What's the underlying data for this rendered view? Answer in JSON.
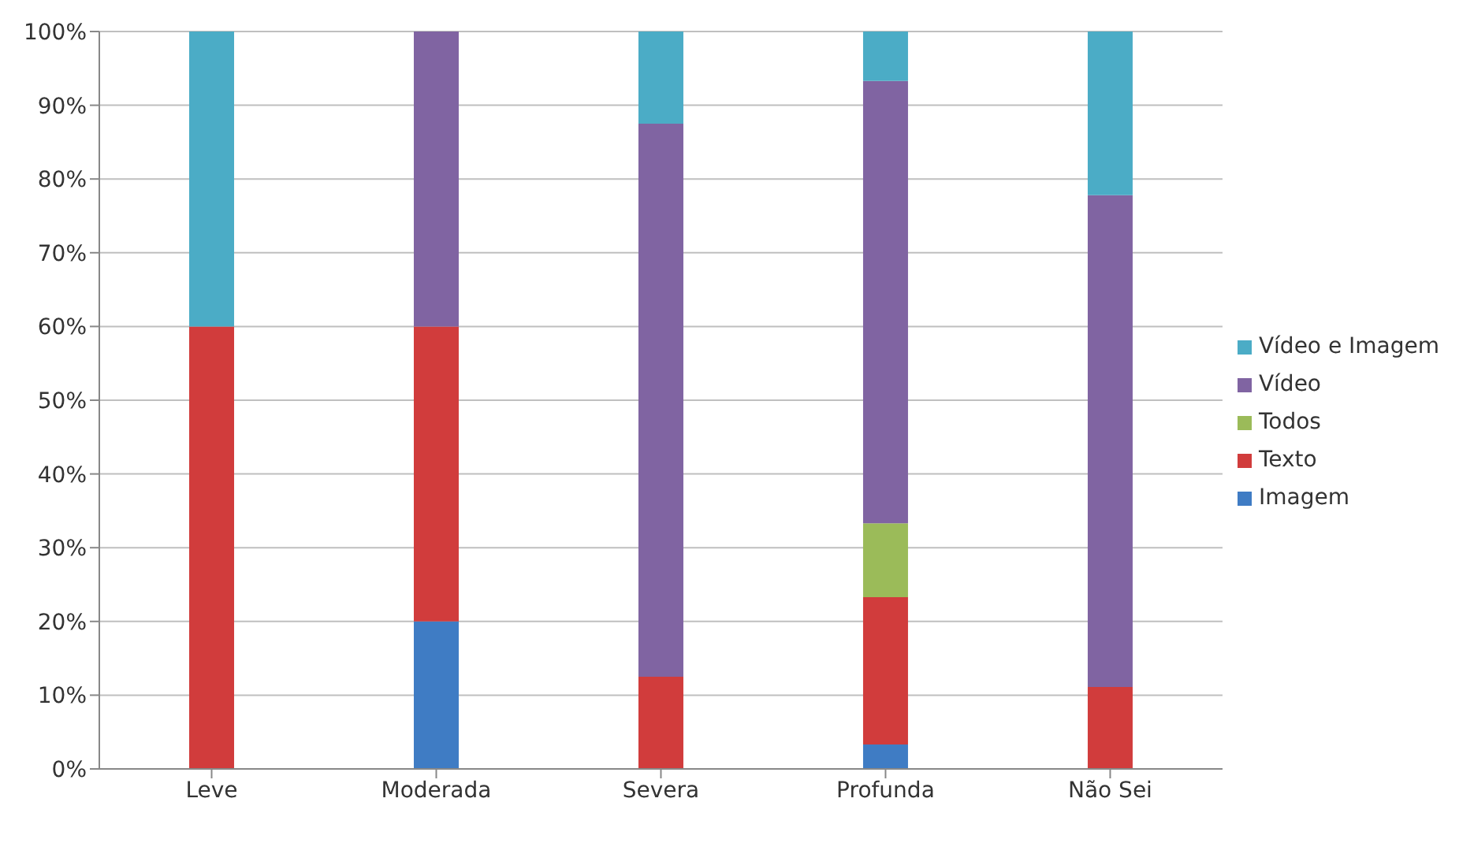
{
  "chart_data": {
    "type": "bar",
    "stacked": true,
    "categories": [
      "Leve",
      "Moderada",
      "Severa",
      "Profunda",
      "Não Sei"
    ],
    "series": [
      {
        "name": "Imagem",
        "color": "#3f7cc4",
        "values": [
          null,
          20,
          null,
          3.3,
          null
        ]
      },
      {
        "name": "Texto",
        "color": "#d13c3c",
        "values": [
          60,
          40,
          12.5,
          20,
          11.1
        ]
      },
      {
        "name": "Todos",
        "color": "#9bbb59",
        "values": [
          null,
          null,
          null,
          10,
          null
        ]
      },
      {
        "name": "Vídeo",
        "color": "#8064a2",
        "values": [
          null,
          40,
          75,
          60,
          66.7
        ]
      },
      {
        "name": "Vídeo e Imagem",
        "color": "#4bacc6",
        "values": [
          40,
          null,
          12.5,
          6.7,
          22.2
        ]
      }
    ],
    "ylim": [
      0,
      100
    ],
    "yticks": [
      {
        "value": 0,
        "label": "0%"
      },
      {
        "value": 10,
        "label": "10%"
      },
      {
        "value": 20,
        "label": "20%"
      },
      {
        "value": 30,
        "label": "30%"
      },
      {
        "value": 40,
        "label": "40%"
      },
      {
        "value": 50,
        "label": "50%"
      },
      {
        "value": 60,
        "label": "60%"
      },
      {
        "value": 70,
        "label": "70%"
      },
      {
        "value": 80,
        "label": "80%"
      },
      {
        "value": 90,
        "label": "90%"
      },
      {
        "value": 100,
        "label": "100%"
      }
    ],
    "grid": "y",
    "legend": "right"
  }
}
